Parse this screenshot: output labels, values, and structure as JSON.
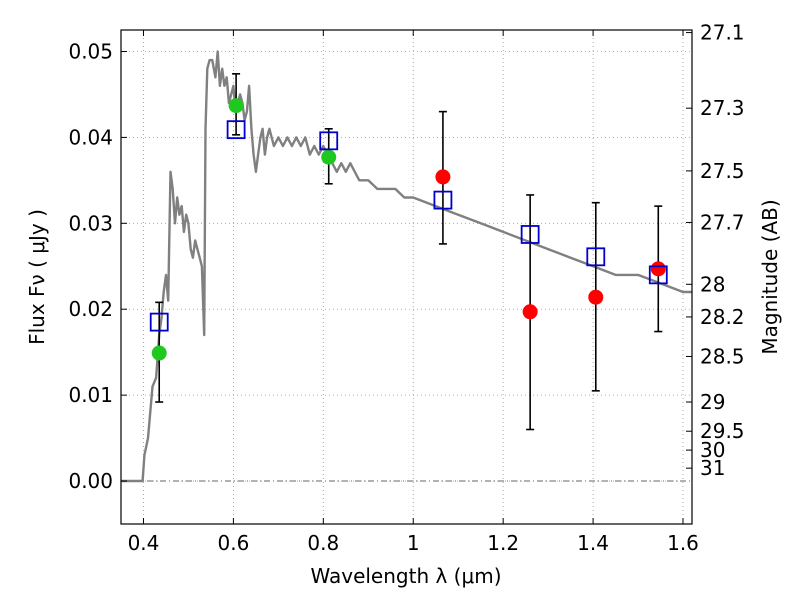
{
  "chart_data": {
    "type": "scatter",
    "xlabel": "Wavelength  λ (μm)",
    "ylabel": "Flux  Fν  ( μJy )",
    "y2label": "Magnitude (AB)",
    "xlim": [
      0.35,
      1.62
    ],
    "ylim": [
      -0.005,
      0.0525
    ],
    "grid": true,
    "x_ticks": [
      0.4,
      0.6,
      0.8,
      1.0,
      1.2,
      1.4,
      1.6
    ],
    "x_tick_labels": [
      "0.4",
      "0.6",
      "0.8",
      "1",
      "1.2",
      "1.4",
      "1.6"
    ],
    "y_ticks": [
      0.0,
      0.01,
      0.02,
      0.03,
      0.04,
      0.05
    ],
    "y_tick_labels": [
      "0.00",
      "0.01",
      "0.02",
      "0.03",
      "0.04",
      "0.05"
    ],
    "y2_ticks": [
      {
        "label": "27.1",
        "flux": 0.0522
      },
      {
        "label": "27.3",
        "flux": 0.0434
      },
      {
        "label": "27.5",
        "flux": 0.0361
      },
      {
        "label": "27.7",
        "flux": 0.0301
      },
      {
        "label": "28",
        "flux": 0.0229
      },
      {
        "label": "28.2",
        "flux": 0.0191
      },
      {
        "label": "28.5",
        "flux": 0.0145
      },
      {
        "label": "29",
        "flux": 0.0092
      },
      {
        "label": "29.5",
        "flux": 0.0058
      },
      {
        "label": "30",
        "flux": 0.0036
      },
      {
        "label": "31",
        "flux": 0.0015
      }
    ],
    "series": [
      {
        "kind": "line",
        "color": "#808080",
        "x": [
          0.35,
          0.398,
          0.402,
          0.41,
          0.42,
          0.428,
          0.435,
          0.44,
          0.445,
          0.45,
          0.455,
          0.46,
          0.465,
          0.47,
          0.475,
          0.48,
          0.485,
          0.49,
          0.495,
          0.5,
          0.505,
          0.51,
          0.515,
          0.52,
          0.525,
          0.53,
          0.535,
          0.538,
          0.542,
          0.547,
          0.553,
          0.56,
          0.565,
          0.57,
          0.575,
          0.58,
          0.585,
          0.59,
          0.595,
          0.6,
          0.605,
          0.61,
          0.615,
          0.62,
          0.625,
          0.63,
          0.635,
          0.64,
          0.645,
          0.65,
          0.655,
          0.66,
          0.665,
          0.67,
          0.675,
          0.68,
          0.69,
          0.7,
          0.71,
          0.72,
          0.73,
          0.74,
          0.75,
          0.76,
          0.77,
          0.78,
          0.79,
          0.8,
          0.81,
          0.82,
          0.83,
          0.84,
          0.85,
          0.86,
          0.87,
          0.88,
          0.9,
          0.92,
          0.94,
          0.96,
          0.98,
          1.0,
          1.05,
          1.1,
          1.15,
          1.2,
          1.25,
          1.3,
          1.35,
          1.4,
          1.45,
          1.5,
          1.55,
          1.6,
          1.62
        ],
        "y": [
          0.0,
          0.0,
          0.003,
          0.005,
          0.011,
          0.012,
          0.017,
          0.019,
          0.022,
          0.024,
          0.021,
          0.036,
          0.034,
          0.03,
          0.033,
          0.031,
          0.032,
          0.029,
          0.031,
          0.03,
          0.027,
          0.026,
          0.028,
          0.027,
          0.026,
          0.025,
          0.017,
          0.041,
          0.048,
          0.049,
          0.049,
          0.047,
          0.05,
          0.046,
          0.048,
          0.046,
          0.047,
          0.044,
          0.045,
          0.046,
          0.043,
          0.044,
          0.045,
          0.044,
          0.042,
          0.043,
          0.046,
          0.041,
          0.038,
          0.036,
          0.038,
          0.04,
          0.041,
          0.038,
          0.04,
          0.041,
          0.039,
          0.04,
          0.039,
          0.04,
          0.039,
          0.04,
          0.039,
          0.04,
          0.038,
          0.039,
          0.038,
          0.039,
          0.038,
          0.037,
          0.036,
          0.037,
          0.036,
          0.037,
          0.036,
          0.035,
          0.035,
          0.034,
          0.034,
          0.034,
          0.033,
          0.033,
          0.032,
          0.031,
          0.03,
          0.029,
          0.028,
          0.027,
          0.026,
          0.025,
          0.024,
          0.024,
          0.023,
          0.022,
          0.022
        ]
      },
      {
        "kind": "points",
        "marker": "circle",
        "color": "#1ec81e",
        "x": [
          0.435,
          0.606,
          0.812
        ],
        "y": [
          0.0149,
          0.0437,
          0.0377
        ]
      },
      {
        "kind": "points",
        "marker": "circle",
        "color": "#ff0000",
        "x": [
          1.066,
          1.26,
          1.406,
          1.545
        ],
        "y": [
          0.0354,
          0.0197,
          0.0214,
          0.0247
        ]
      },
      {
        "kind": "points",
        "marker": "open-square",
        "color": "#0000cc",
        "x": [
          0.435,
          0.606,
          0.812,
          1.066,
          1.26,
          1.406,
          1.545
        ],
        "y": [
          0.0185,
          0.0409,
          0.0396,
          0.0327,
          0.0287,
          0.0261,
          0.024
        ]
      },
      {
        "kind": "errorbars",
        "color": "#000000",
        "x": [
          0.435,
          0.606,
          0.812,
          1.066,
          1.26,
          1.406,
          1.545
        ],
        "y": [
          0.0149,
          0.0437,
          0.0377,
          0.0354,
          0.0197,
          0.0214,
          0.0247
        ],
        "low": [
          0.0092,
          0.0403,
          0.0346,
          0.0276,
          0.006,
          0.0105,
          0.0174
        ],
        "high": [
          0.0208,
          0.0474,
          0.041,
          0.043,
          0.0333,
          0.0324,
          0.032
        ]
      }
    ],
    "zero_line": 0.0
  }
}
